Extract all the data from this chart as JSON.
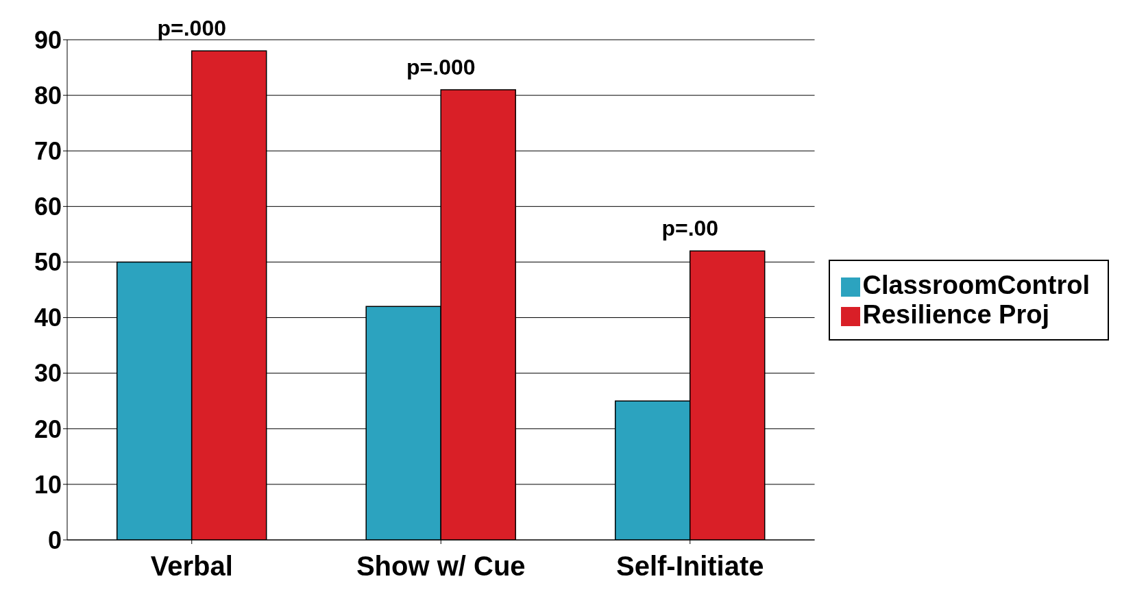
{
  "chart_data": {
    "type": "bar",
    "categories": [
      "Verbal",
      "Show w/ Cue",
      "Self-Initiate"
    ],
    "series": [
      {
        "name": "ClassroomControl",
        "color": "#2ca3bf",
        "values": [
          50,
          42,
          25
        ]
      },
      {
        "name": "Resilience Proj",
        "color": "#d91f27",
        "values": [
          88,
          81,
          52
        ]
      }
    ],
    "ylim": [
      0,
      90
    ],
    "yticks": [
      0,
      10,
      20,
      30,
      40,
      50,
      60,
      70,
      80,
      90
    ],
    "grid": "y",
    "legend": "right",
    "annotations": [
      {
        "text": "p=.000",
        "x": "Verbal",
        "y": 88
      },
      {
        "text": "p=.000",
        "x": "Show w/ Cue",
        "y": 81
      },
      {
        "text": "p=.00",
        "x": "Self-Initiate",
        "y": 52
      }
    ]
  }
}
